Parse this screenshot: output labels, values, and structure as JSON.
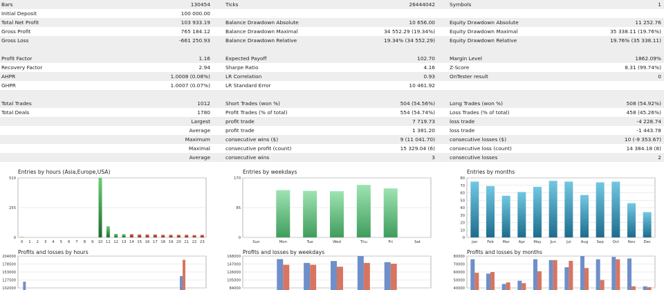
{
  "report": {
    "rows": [
      {
        "shade": true,
        "c1_label": "Bars",
        "c1_value": "130454",
        "c2_label": "Ticks",
        "c2_value": "26444042",
        "c3_label": "Symbols",
        "c3_value": "1"
      },
      {
        "shade": false,
        "c1_label": "Initial Deposit",
        "c1_value": "100 000.00",
        "c2_label": "",
        "c2_value": "",
        "c3_label": "",
        "c3_value": ""
      },
      {
        "shade": true,
        "c1_label": "Total Net Profit",
        "c1_value": "103 933.19",
        "c2_label": "Balance Drawdown Absolute",
        "c2_value": "10 656.00",
        "c3_label": "Equity Drawdown Absolute",
        "c3_value": "11 252.76"
      },
      {
        "shade": false,
        "c1_label": "Gross Profit",
        "c1_value": "765 184.12",
        "c2_label": "Balance Drawdown Maximal",
        "c2_value": "34 552.29 (19.34%)",
        "c3_label": "Equity Drawdown Maximal",
        "c3_value": "35 338.11 (19.76%)"
      },
      {
        "shade": true,
        "c1_label": "Gross Loss",
        "c1_value": "-661 250.93",
        "c2_label": "Balance Drawdown Relative",
        "c2_value": "19.34% (34 552.29)",
        "c3_label": "Equity Drawdown Relative",
        "c3_value": "19.76% (35 338.11)"
      },
      {
        "blank": true
      },
      {
        "shade": true,
        "c1_label": "Profit Factor",
        "c1_value": "1.16",
        "c2_label": "Expected Payoff",
        "c2_value": "102.70",
        "c3_label": "Margin Level",
        "c3_value": "1862.09%"
      },
      {
        "shade": false,
        "c1_label": "Recovery Factor",
        "c1_value": "2.94",
        "c2_label": "Sharpe Ratio",
        "c2_value": "4.16",
        "c3_label": "Z-Score",
        "c3_value": "8.31 (99.74%)"
      },
      {
        "shade": true,
        "c1_label": "AHPR",
        "c1_value": "1.0008 (0.08%)",
        "c2_label": "LR Correlation",
        "c2_value": "0.93",
        "c3_label": "OnTester result",
        "c3_value": "0"
      },
      {
        "shade": false,
        "c1_label": "GHPR",
        "c1_value": "1.0007 (0.07%)",
        "c2_label": "LR Standard Error",
        "c2_value": "10 461.92",
        "c3_label": "",
        "c3_value": ""
      },
      {
        "blank": true
      },
      {
        "shade": true,
        "c1_label": "Total Trades",
        "c1_value": "1012",
        "c2_label": "Short Trades (won %)",
        "c2_value": "504 (54.56%)",
        "c3_label": "Long Trades (won %)",
        "c3_value": "508 (54.92%)"
      },
      {
        "shade": false,
        "c1_label": "Total Deals",
        "c1_value": "1780",
        "c2_label": "Profit Trades (% of total)",
        "c2_value": "554 (54.74%)",
        "c3_label": "Loss Trades (% of total)",
        "c3_value": "458 (45.26%)"
      },
      {
        "shade": true,
        "c1_label": "",
        "c1_value": "Largest",
        "c2_label": "profit trade",
        "c2_value": "7 719.73",
        "c3_label": "loss trade",
        "c3_value": "-4 228.74"
      },
      {
        "shade": false,
        "c1_label": "",
        "c1_value": "Average",
        "c2_label": "profit trade",
        "c2_value": "1 381.20",
        "c3_label": "loss trade",
        "c3_value": "-1 443.78"
      },
      {
        "shade": true,
        "c1_label": "",
        "c1_value": "Maximum",
        "c2_label": "consecutive wins ($)",
        "c2_value": "9 (11 041.70)",
        "c3_label": "consecutive losses ($)",
        "c3_value": "10 (-9 353.67)"
      },
      {
        "shade": false,
        "c1_label": "",
        "c1_value": "Maximal",
        "c2_label": "consecutive profit (count)",
        "c2_value": "15 329.04 (6)",
        "c3_label": "consecutive loss (count)",
        "c3_value": "14 384.18 (8)"
      },
      {
        "shade": true,
        "c1_label": "",
        "c1_value": "Average",
        "c2_label": "consecutive wins",
        "c2_value": "3",
        "c3_label": "consecutive losses",
        "c3_value": "2"
      }
    ]
  },
  "chart_data": [
    {
      "type": "bar",
      "title": "Entries by hours (Asia,Europe,USA)",
      "categories": [
        "0",
        "1",
        "2",
        "3",
        "4",
        "5",
        "6",
        "7",
        "8",
        "9",
        "10",
        "11",
        "12",
        "13",
        "14",
        "15",
        "16",
        "17",
        "18",
        "19",
        "20",
        "21",
        "22",
        "23"
      ],
      "series": [
        {
          "values": [
            5,
            0,
            0,
            0,
            0,
            0,
            0,
            0,
            0,
            0,
            510,
            95,
            30,
            28,
            28,
            25,
            25,
            25,
            22,
            22,
            22,
            22,
            20,
            22
          ]
        }
      ],
      "y_ticks": [
        "510",
        "255",
        "0"
      ],
      "ylim": [
        0,
        510
      ],
      "bar_colors": {
        "asia": "#e8a33a",
        "europe": "#2f8a3c",
        "usa": "#b23a2a"
      }
    },
    {
      "type": "bar",
      "title": "Entries by weekdays",
      "categories": [
        "Sun",
        "Mon",
        "Tue",
        "Wed",
        "Thu",
        "Fri",
        "Sat"
      ],
      "values": [
        0,
        135,
        133,
        132,
        150,
        140,
        0
      ],
      "y_ticks": [
        "170",
        "85",
        "0"
      ],
      "ylim": [
        0,
        170
      ],
      "bar_color": "#6cc58a"
    },
    {
      "type": "bar",
      "title": "Entries by months",
      "categories": [
        "Jan",
        "Feb",
        "Mar",
        "Apr",
        "May",
        "Jun",
        "Jul",
        "Aug",
        "Sep",
        "Oct",
        "Nov",
        "Dec"
      ],
      "values": [
        75,
        69,
        56,
        61,
        68,
        76,
        75,
        57,
        74,
        75,
        46,
        34
      ],
      "y_ticks": [
        "80",
        "70",
        "60",
        "50",
        "40",
        "30",
        "20",
        "10",
        "0"
      ],
      "ylim": [
        0,
        80
      ],
      "bar_color": "#2d8fb0"
    },
    {
      "type": "bar",
      "title": "Profits and losses by hours",
      "y_ticks": [
        "204000",
        "178500",
        "153000",
        "127500",
        "102000"
      ],
      "ylim": [
        102000,
        204000
      ],
      "groups": [
        {
          "profit": 122000,
          "loss": 0
        },
        {
          "profit": 0,
          "loss": 0
        },
        {
          "profit": 0,
          "loss": 0
        },
        {
          "profit": 0,
          "loss": 0
        },
        {
          "profit": 0,
          "loss": 0
        },
        {
          "profit": 0,
          "loss": 0
        },
        {
          "profit": 0,
          "loss": 0
        },
        {
          "profit": 0,
          "loss": 0
        },
        {
          "profit": 0,
          "loss": 0
        },
        {
          "profit": 0,
          "loss": 0
        },
        {
          "profit": 140000,
          "loss": 192000
        },
        {
          "profit": 0,
          "loss": 0
        }
      ],
      "profit_color": "#6f8fc9",
      "loss_color": "#d87560"
    },
    {
      "type": "bar",
      "title": "Profits and losses by weekdays",
      "y_ticks": [
        "168000",
        "147000",
        "126000",
        "105000",
        "84000"
      ],
      "ylim": [
        84000,
        168000
      ],
      "groups": [
        {
          "profit": 0,
          "loss": 0
        },
        {
          "profit": 160000,
          "loss": 145000
        },
        {
          "profit": 150000,
          "loss": 145000
        },
        {
          "profit": 155000,
          "loss": 140000
        },
        {
          "profit": 168000,
          "loss": 150000
        },
        {
          "profit": 152000,
          "loss": 148000
        },
        {
          "profit": 0,
          "loss": 0
        }
      ],
      "profit_color": "#6f8fc9",
      "loss_color": "#d87560"
    },
    {
      "type": "bar",
      "title": "Profits and losses by months",
      "y_ticks": [
        "80000",
        "70000",
        "60000",
        "50000",
        "40000"
      ],
      "ylim": [
        40000,
        80000
      ],
      "groups": [
        {
          "profit": 76000,
          "loss": 59000
        },
        {
          "profit": 58000,
          "loss": 60000
        },
        {
          "profit": 45000,
          "loss": 47000
        },
        {
          "profit": 49000,
          "loss": 46000
        },
        {
          "profit": 76000,
          "loss": 61000
        },
        {
          "profit": 75000,
          "loss": 75000
        },
        {
          "profit": 66000,
          "loss": 74000
        },
        {
          "profit": 80000,
          "loss": 65000
        },
        {
          "profit": 76000,
          "loss": 50000
        },
        {
          "profit": 79000,
          "loss": 76000
        },
        {
          "profit": 77000,
          "loss": 42000
        },
        {
          "profit": 42000,
          "loss": 41000
        }
      ],
      "profit_color": "#6f8fc9",
      "loss_color": "#d87560"
    }
  ]
}
